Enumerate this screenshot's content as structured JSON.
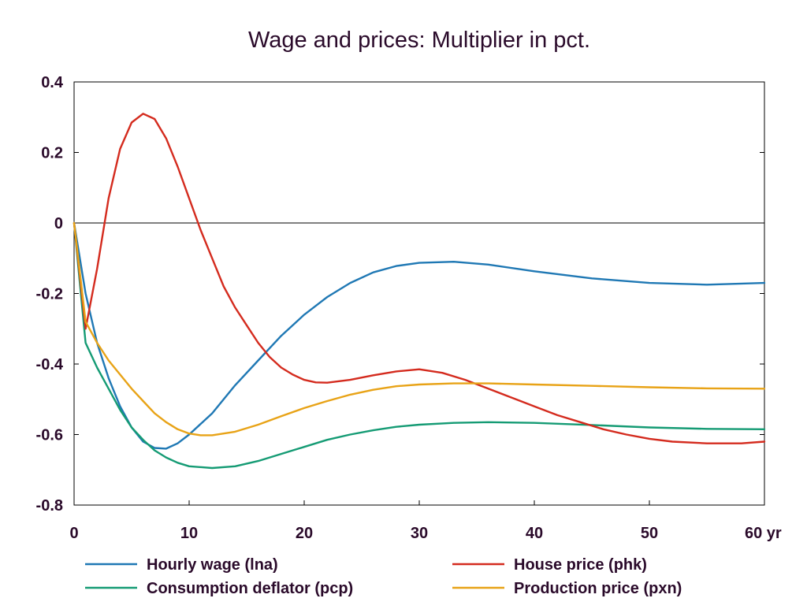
{
  "chart_data": {
    "type": "line",
    "title": "Wage and prices: Multiplier in pct.",
    "xlabel": "",
    "ylabel": "",
    "x_unit_label": "yr",
    "xlim": [
      0,
      60
    ],
    "ylim": [
      -0.8,
      0.4
    ],
    "xticks": [
      0,
      10,
      20,
      30,
      40,
      50,
      60
    ],
    "xtick_labels": [
      "0",
      "10",
      "20",
      "30",
      "40",
      "50",
      "60 yr"
    ],
    "yticks": [
      0.4,
      0.2,
      0,
      -0.2,
      -0.4,
      -0.6,
      -0.8
    ],
    "ytick_labels": [
      "0.4",
      "0.2",
      "0",
      "-0.2",
      "-0.4",
      "-0.6",
      "-0.8"
    ],
    "zero_line": true,
    "grid": false,
    "legend_position": "bottom",
    "series": [
      {
        "name": "Hourly wage (lna)",
        "color": "#1f78b4",
        "points": [
          [
            0,
            0
          ],
          [
            1,
            -0.2
          ],
          [
            2,
            -0.34
          ],
          [
            3,
            -0.44
          ],
          [
            4,
            -0.52
          ],
          [
            5,
            -0.58
          ],
          [
            6,
            -0.62
          ],
          [
            7,
            -0.638
          ],
          [
            8,
            -0.64
          ],
          [
            9,
            -0.625
          ],
          [
            10,
            -0.6
          ],
          [
            12,
            -0.54
          ],
          [
            14,
            -0.46
          ],
          [
            16,
            -0.39
          ],
          [
            18,
            -0.32
          ],
          [
            20,
            -0.26
          ],
          [
            22,
            -0.21
          ],
          [
            24,
            -0.17
          ],
          [
            26,
            -0.14
          ],
          [
            28,
            -0.122
          ],
          [
            30,
            -0.113
          ],
          [
            33,
            -0.11
          ],
          [
            36,
            -0.118
          ],
          [
            40,
            -0.137
          ],
          [
            45,
            -0.157
          ],
          [
            50,
            -0.17
          ],
          [
            55,
            -0.175
          ],
          [
            60,
            -0.17
          ]
        ]
      },
      {
        "name": "Consumption deflator (pcp)",
        "color": "#159b74",
        "points": [
          [
            0,
            0
          ],
          [
            1,
            -0.34
          ],
          [
            2,
            -0.41
          ],
          [
            3,
            -0.47
          ],
          [
            4,
            -0.53
          ],
          [
            5,
            -0.58
          ],
          [
            6,
            -0.615
          ],
          [
            7,
            -0.645
          ],
          [
            8,
            -0.665
          ],
          [
            9,
            -0.68
          ],
          [
            10,
            -0.69
          ],
          [
            12,
            -0.695
          ],
          [
            14,
            -0.69
          ],
          [
            16,
            -0.675
          ],
          [
            18,
            -0.655
          ],
          [
            20,
            -0.635
          ],
          [
            22,
            -0.615
          ],
          [
            24,
            -0.6
          ],
          [
            26,
            -0.588
          ],
          [
            28,
            -0.578
          ],
          [
            30,
            -0.572
          ],
          [
            33,
            -0.567
          ],
          [
            36,
            -0.565
          ],
          [
            40,
            -0.567
          ],
          [
            45,
            -0.573
          ],
          [
            50,
            -0.58
          ],
          [
            55,
            -0.584
          ],
          [
            60,
            -0.585
          ]
        ]
      },
      {
        "name": "House price (phk)",
        "color": "#d42b1e",
        "points": [
          [
            0,
            0
          ],
          [
            1,
            -0.3
          ],
          [
            2,
            -0.13
          ],
          [
            3,
            0.07
          ],
          [
            4,
            0.21
          ],
          [
            5,
            0.285
          ],
          [
            6,
            0.31
          ],
          [
            7,
            0.295
          ],
          [
            8,
            0.24
          ],
          [
            9,
            0.16
          ],
          [
            10,
            0.07
          ],
          [
            11,
            -0.02
          ],
          [
            12,
            -0.1
          ],
          [
            13,
            -0.18
          ],
          [
            14,
            -0.24
          ],
          [
            15,
            -0.29
          ],
          [
            16,
            -0.34
          ],
          [
            17,
            -0.38
          ],
          [
            18,
            -0.41
          ],
          [
            19,
            -0.43
          ],
          [
            20,
            -0.445
          ],
          [
            21,
            -0.452
          ],
          [
            22,
            -0.453
          ],
          [
            24,
            -0.445
          ],
          [
            26,
            -0.432
          ],
          [
            28,
            -0.421
          ],
          [
            30,
            -0.415
          ],
          [
            32,
            -0.425
          ],
          [
            34,
            -0.445
          ],
          [
            36,
            -0.47
          ],
          [
            38,
            -0.495
          ],
          [
            40,
            -0.52
          ],
          [
            42,
            -0.545
          ],
          [
            44,
            -0.565
          ],
          [
            46,
            -0.585
          ],
          [
            48,
            -0.6
          ],
          [
            50,
            -0.612
          ],
          [
            52,
            -0.62
          ],
          [
            55,
            -0.625
          ],
          [
            58,
            -0.625
          ],
          [
            60,
            -0.62
          ]
        ]
      },
      {
        "name": "Production price (pxn)",
        "color": "#e8a317",
        "points": [
          [
            0,
            0
          ],
          [
            1,
            -0.28
          ],
          [
            2,
            -0.34
          ],
          [
            3,
            -0.39
          ],
          [
            4,
            -0.43
          ],
          [
            5,
            -0.47
          ],
          [
            6,
            -0.505
          ],
          [
            7,
            -0.54
          ],
          [
            8,
            -0.565
          ],
          [
            9,
            -0.585
          ],
          [
            10,
            -0.597
          ],
          [
            11,
            -0.602
          ],
          [
            12,
            -0.602
          ],
          [
            14,
            -0.592
          ],
          [
            16,
            -0.572
          ],
          [
            18,
            -0.548
          ],
          [
            20,
            -0.525
          ],
          [
            22,
            -0.505
          ],
          [
            24,
            -0.487
          ],
          [
            26,
            -0.473
          ],
          [
            28,
            -0.463
          ],
          [
            30,
            -0.458
          ],
          [
            33,
            -0.455
          ],
          [
            36,
            -0.455
          ],
          [
            40,
            -0.458
          ],
          [
            45,
            -0.462
          ],
          [
            50,
            -0.466
          ],
          [
            55,
            -0.469
          ],
          [
            60,
            -0.47
          ]
        ]
      }
    ]
  }
}
